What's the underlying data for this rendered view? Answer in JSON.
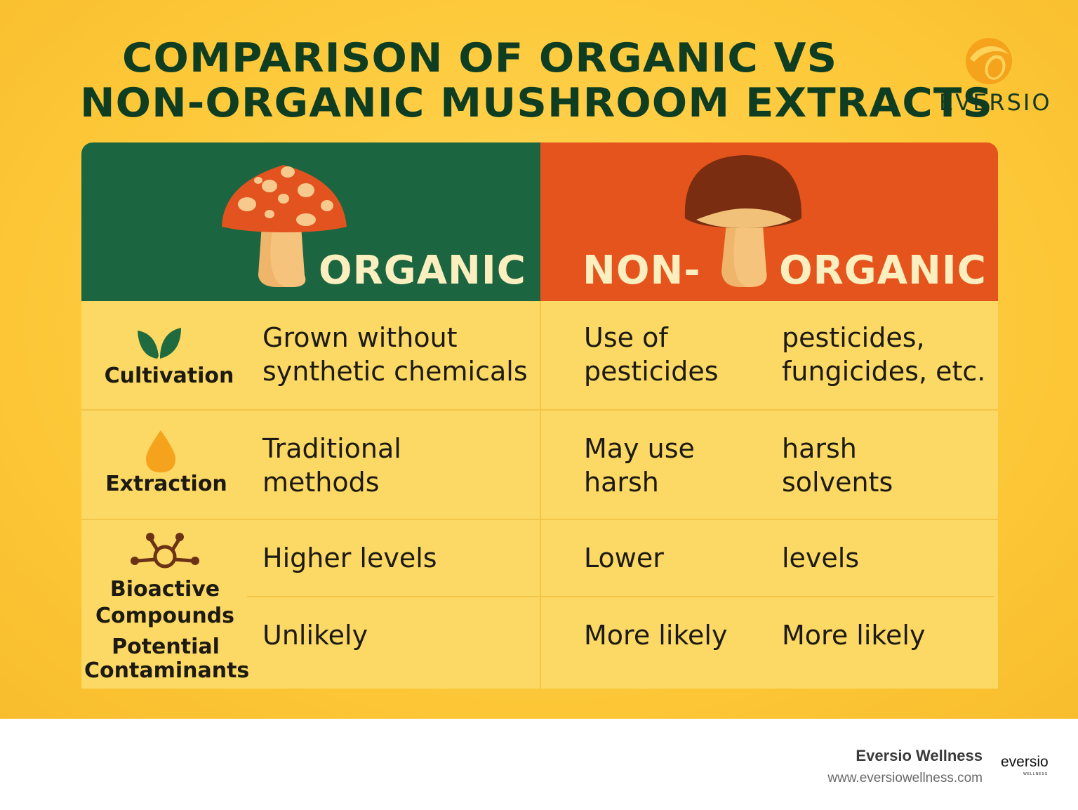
{
  "title": {
    "line1": "COMPARISON OF ORGANIC VS",
    "line2": "NON-ORGANIC MUSHROOM EXTRACTS"
  },
  "brand": {
    "name": "EVERSIO"
  },
  "colors": {
    "background": "#fdc93a",
    "organic_header": "#1b6640",
    "nonorganic_header": "#e5541c",
    "title_text": "#0f3d22"
  },
  "headers": {
    "organic": "ORGANIC",
    "nonorganic_part1": "NON-",
    "nonorganic_part2": "ORGANIC"
  },
  "rows": [
    {
      "icon": "leaf-icon",
      "category": "Cultivation",
      "organic": [
        "Grown without",
        "synthetic chemicals"
      ],
      "non_a": [
        "Use of",
        "pesticides"
      ],
      "non_b": [
        "pesticides,",
        "fungicides, etc."
      ]
    },
    {
      "icon": "droplet-icon",
      "category": "Extraction",
      "organic": [
        "Traditional",
        "methods"
      ],
      "non_a": [
        "May use",
        "harsh"
      ],
      "non_b": [
        "harsh",
        "solvents"
      ]
    },
    {
      "icon": "molecule-icon",
      "category": "Bioactive Compounds",
      "organic": "Higher levels",
      "non_a": "Lower",
      "non_b": "levels"
    },
    {
      "category": "Potential Contaminants",
      "organic": "Unlikely",
      "non_a": "More likely",
      "non_b": "More likely"
    }
  ],
  "category_labels": {
    "bioactive_line1": "Bioactive",
    "bioactive_line2": "Compounds",
    "contaminants_line1": "Potential",
    "contaminants_line2": "Contaminants"
  },
  "footer": {
    "name": "Eversio Wellness",
    "url": "www.eversiowellness.com",
    "logo_text": "eversio",
    "logo_sub": "WELLNESS"
  }
}
